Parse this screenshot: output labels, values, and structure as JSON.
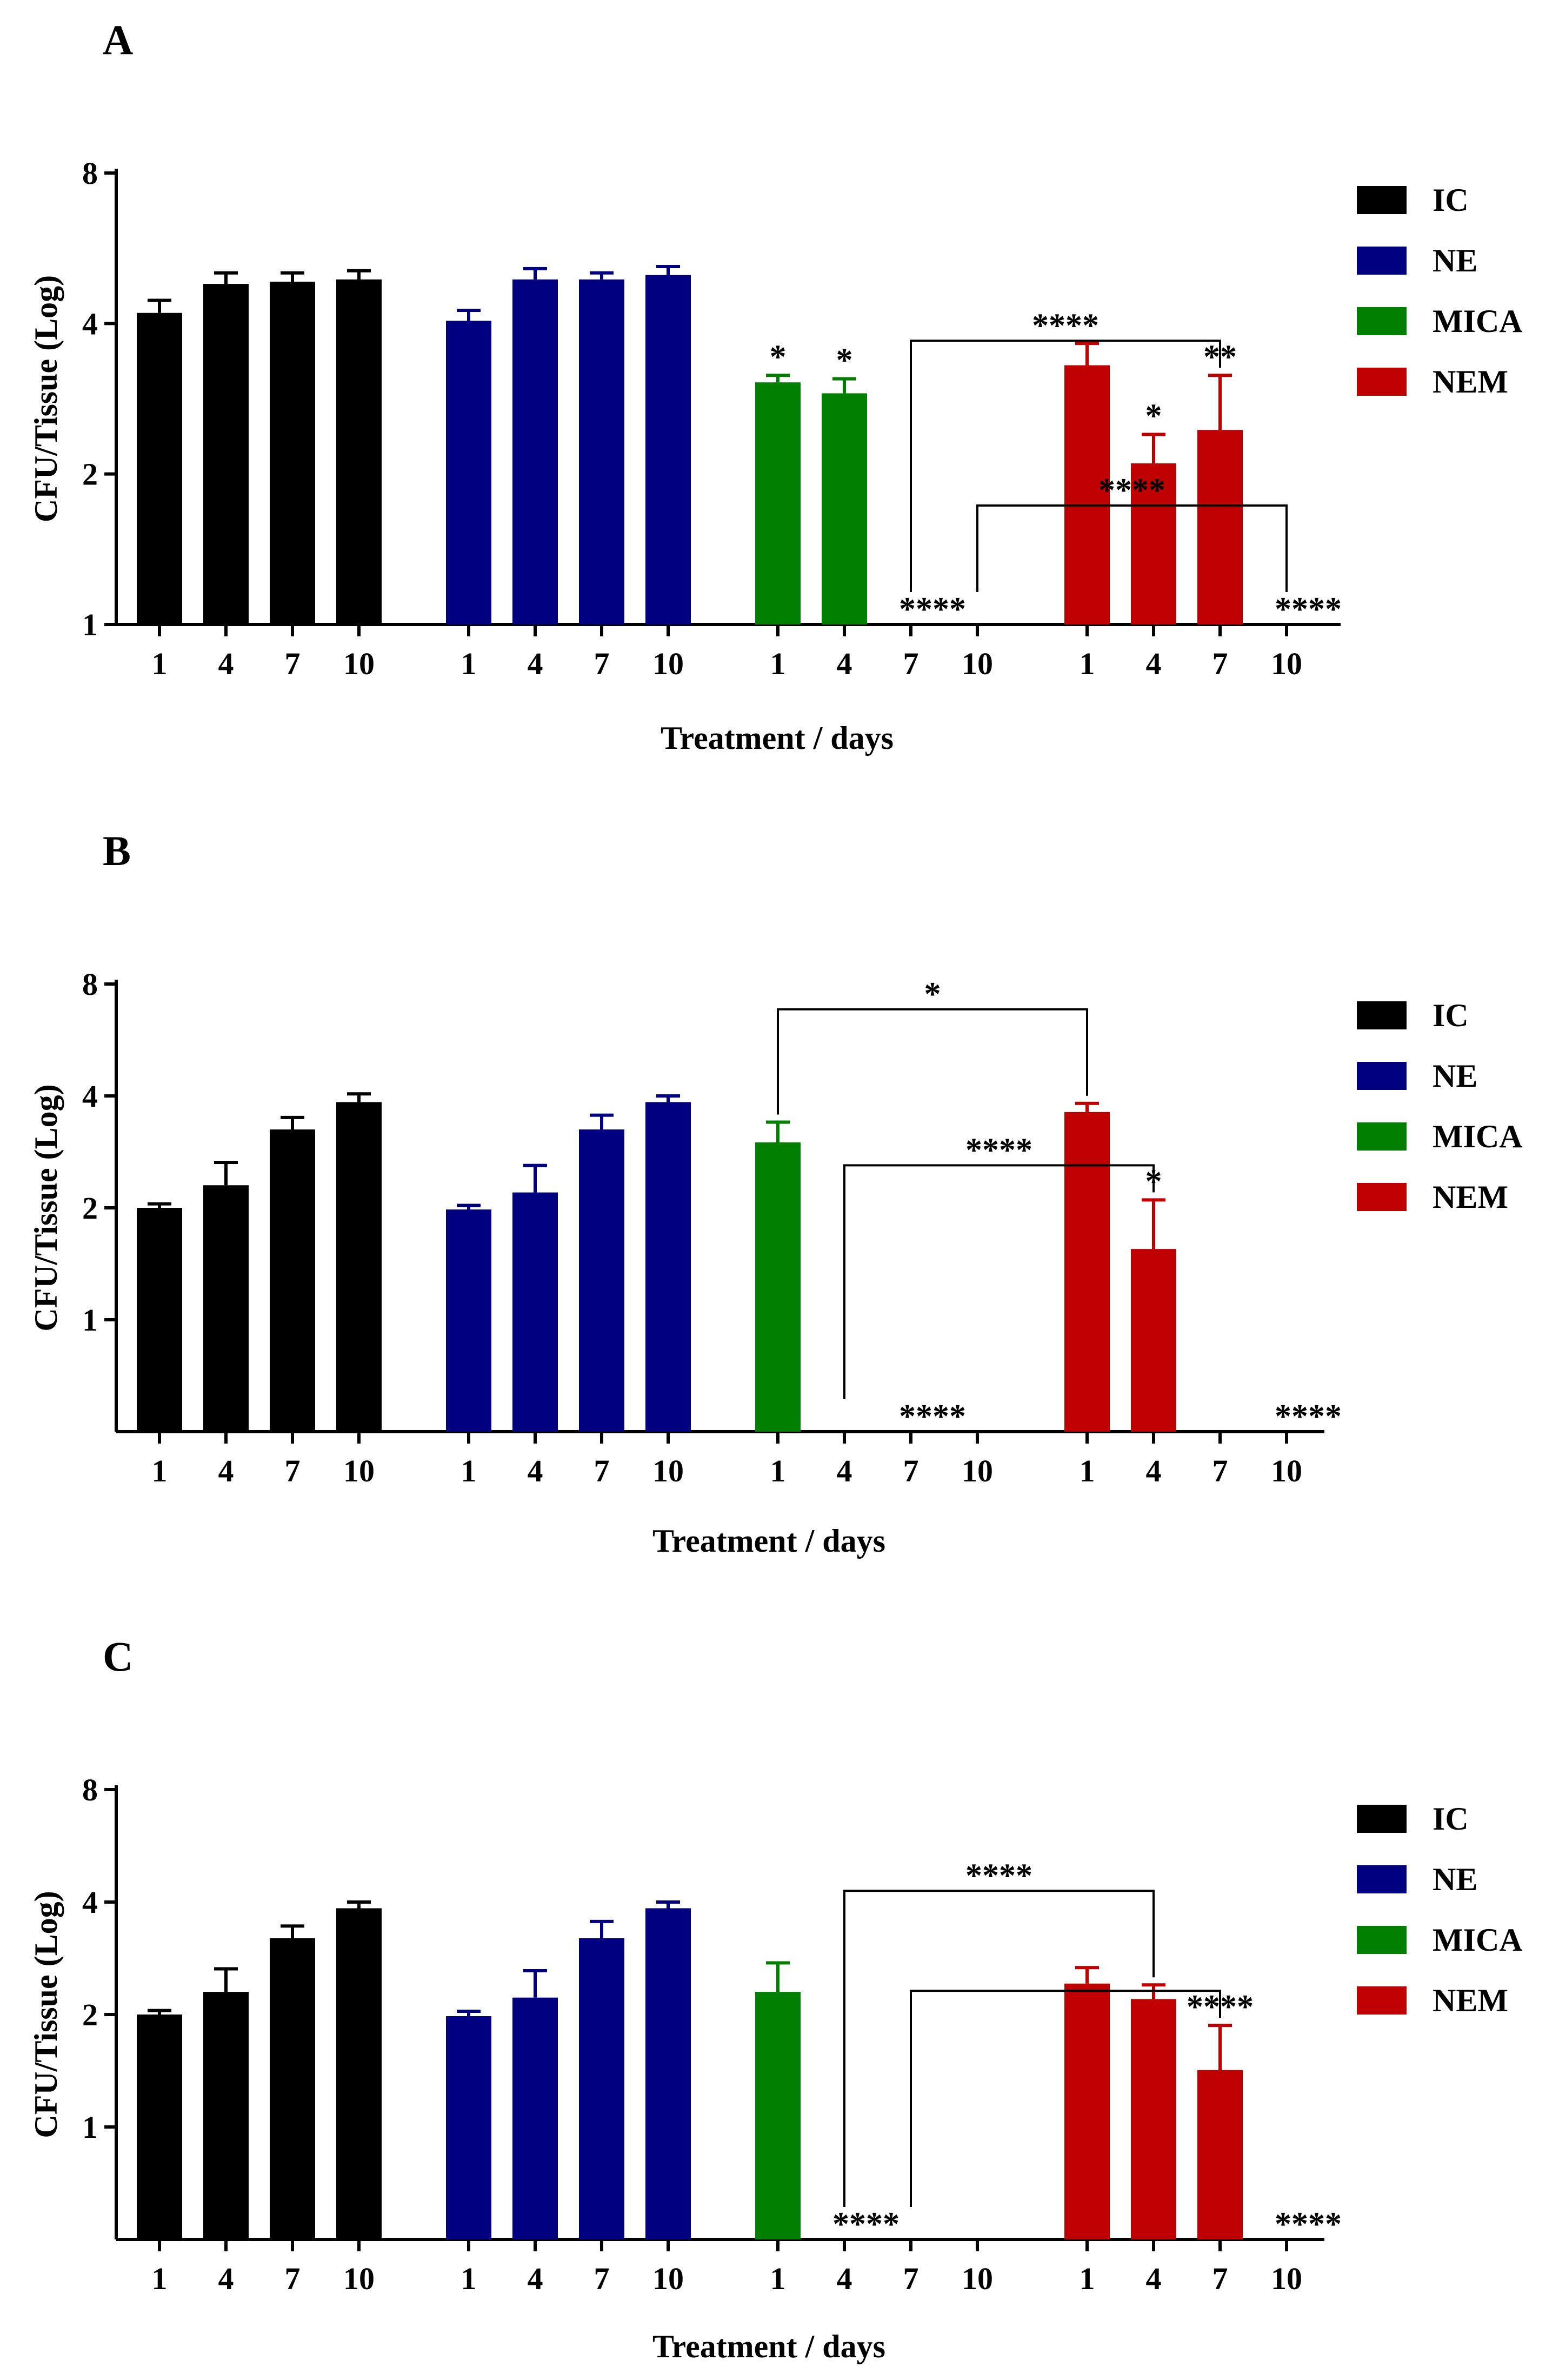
{
  "colors": {
    "IC": "#000000",
    "NE": "#000080",
    "MICA": "#007f00",
    "NEM": "#c00000"
  },
  "chart_data": [
    {
      "type": "bar",
      "panel": "A",
      "xlabel": "Treatment / days",
      "ylabel": "CFU/Tissue (Log)",
      "y_scale": "log2",
      "ylim": [
        1,
        8
      ],
      "yticks": [
        "1",
        "2",
        "4",
        "8"
      ],
      "categories": [
        "1",
        "4",
        "7",
        "10"
      ],
      "legend": [
        "IC",
        "NE",
        "MICA",
        "NEM"
      ],
      "series": [
        {
          "name": "IC",
          "values": [
            4.2,
            4.8,
            4.85,
            4.9
          ],
          "errors": [
            0.25,
            0.25,
            0.2,
            0.2
          ]
        },
        {
          "name": "NE",
          "values": [
            4.05,
            4.9,
            4.9,
            5.0
          ],
          "errors": [
            0.2,
            0.25,
            0.15,
            0.2
          ]
        },
        {
          "name": "MICA",
          "values": [
            3.05,
            2.9,
            0,
            0
          ],
          "errors": [
            0.1,
            0.2,
            0,
            0
          ]
        },
        {
          "name": "NEM",
          "values": [
            3.3,
            2.1,
            2.45,
            0
          ],
          "errors": [
            0.35,
            0.3,
            0.7,
            0
          ]
        }
      ],
      "annotations": [
        {
          "series": 2,
          "index": 0,
          "text": "*"
        },
        {
          "series": 2,
          "index": 1,
          "text": "*"
        },
        {
          "series": 2,
          "index": 2,
          "text": "****"
        },
        {
          "series": 3,
          "index": 1,
          "text": "*"
        },
        {
          "series": 3,
          "index": 2,
          "text": "**"
        },
        {
          "series": 3,
          "index": 3,
          "text": "****"
        }
      ],
      "brackets": [
        {
          "from": [
            2,
            2
          ],
          "to": [
            3,
            2
          ],
          "text": "****",
          "level": 0
        },
        {
          "from": [
            2,
            3
          ],
          "to": [
            3,
            3
          ],
          "text": "****",
          "level": 1
        }
      ]
    },
    {
      "type": "bar",
      "panel": "B",
      "xlabel": "Treatment / days",
      "ylabel": "CFU/Tissue (Log)",
      "y_scale": "log2",
      "ylim": [
        0.5,
        8
      ],
      "yticks": [
        "1",
        "2",
        "4",
        "8"
      ],
      "categories": [
        "1",
        "4",
        "7",
        "10"
      ],
      "legend": [
        "IC",
        "NE",
        "MICA",
        "NEM"
      ],
      "series": [
        {
          "name": "IC",
          "values": [
            2.0,
            2.3,
            3.25,
            3.85
          ],
          "errors": [
            0.05,
            0.35,
            0.25,
            0.2
          ]
        },
        {
          "name": "NE",
          "values": [
            1.98,
            2.2,
            3.25,
            3.85
          ],
          "errors": [
            0.05,
            0.4,
            0.3,
            0.15
          ]
        },
        {
          "name": "MICA",
          "values": [
            3.0,
            0,
            0,
            0
          ],
          "errors": [
            0.4,
            0,
            0,
            0
          ]
        },
        {
          "name": "NEM",
          "values": [
            3.62,
            1.55,
            0,
            0
          ],
          "errors": [
            0.2,
            0.55,
            0,
            0
          ]
        }
      ],
      "annotations": [
        {
          "series": 2,
          "index": 2,
          "text": "****"
        },
        {
          "series": 3,
          "index": 1,
          "text": "*"
        },
        {
          "series": 3,
          "index": 3,
          "text": "****"
        }
      ],
      "brackets": [
        {
          "from": [
            2,
            0
          ],
          "to": [
            3,
            0
          ],
          "text": "*",
          "level": 1
        },
        {
          "from": [
            2,
            1
          ],
          "to": [
            3,
            1
          ],
          "text": "****",
          "level": 0
        }
      ]
    },
    {
      "type": "bar",
      "panel": "C",
      "xlabel": "Treatment / days",
      "ylabel": "CFU/Tissue (Log)",
      "y_scale": "log2",
      "ylim": [
        0.5,
        8
      ],
      "yticks": [
        "1",
        "2",
        "4",
        "8"
      ],
      "categories": [
        "1",
        "4",
        "7",
        "10"
      ],
      "legend": [
        "IC",
        "NE",
        "MICA",
        "NEM"
      ],
      "series": [
        {
          "name": "IC",
          "values": [
            2.0,
            2.3,
            3.2,
            3.85
          ],
          "errors": [
            0.05,
            0.35,
            0.25,
            0.15
          ]
        },
        {
          "name": "NE",
          "values": [
            1.98,
            2.22,
            3.2,
            3.85
          ],
          "errors": [
            0.06,
            0.4,
            0.35,
            0.15
          ]
        },
        {
          "name": "MICA",
          "values": [
            2.3,
            0,
            0,
            0
          ],
          "errors": [
            0.45,
            0,
            0,
            0
          ]
        },
        {
          "name": "NEM",
          "values": [
            2.42,
            2.2,
            1.42,
            0
          ],
          "errors": [
            0.25,
            0.2,
            0.45,
            0
          ]
        }
      ],
      "annotations": [
        {
          "series": 2,
          "index": 1,
          "text": "****"
        },
        {
          "series": 3,
          "index": 2,
          "text": "****"
        },
        {
          "series": 3,
          "index": 3,
          "text": "****"
        }
      ],
      "brackets": [
        {
          "from": [
            2,
            1
          ],
          "to": [
            3,
            1
          ],
          "text": "****",
          "level": 1
        },
        {
          "from": [
            2,
            2
          ],
          "to": [
            3,
            2
          ],
          "text": "",
          "level": 0
        }
      ]
    }
  ]
}
